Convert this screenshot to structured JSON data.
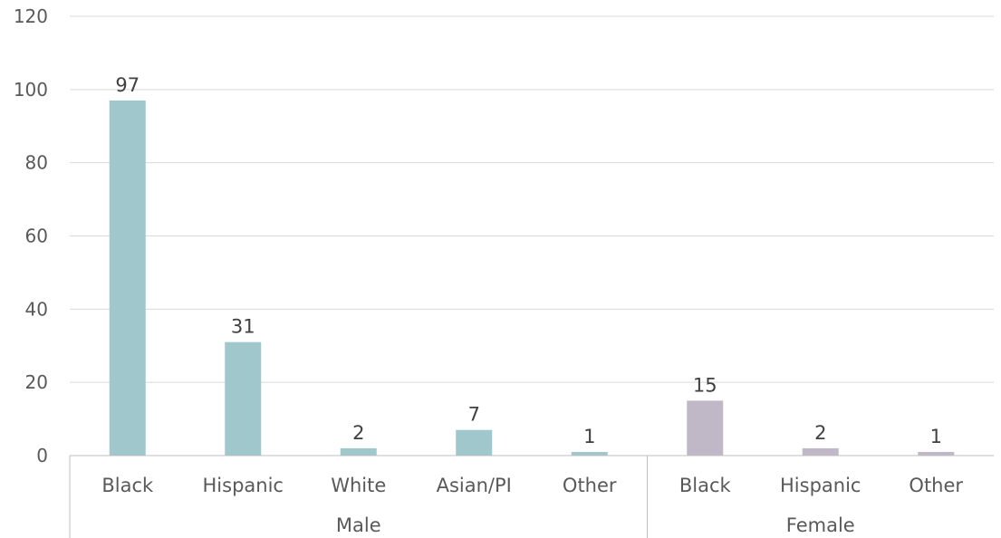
{
  "chart_data": {
    "type": "bar",
    "yticks": [
      0,
      20,
      40,
      60,
      80,
      100,
      120
    ],
    "ylim": [
      0,
      120
    ],
    "grid": true,
    "groups": [
      {
        "name": "Male",
        "color": "#9fc7cc",
        "categories": [
          "Black",
          "Hispanic",
          "White",
          "Asian/PI",
          "Other"
        ],
        "values": [
          97,
          31,
          2,
          7,
          1
        ]
      },
      {
        "name": "Female",
        "color": "#c1b8c7",
        "categories": [
          "Black",
          "Hispanic",
          "Other"
        ],
        "values": [
          15,
          2,
          1
        ]
      }
    ]
  }
}
